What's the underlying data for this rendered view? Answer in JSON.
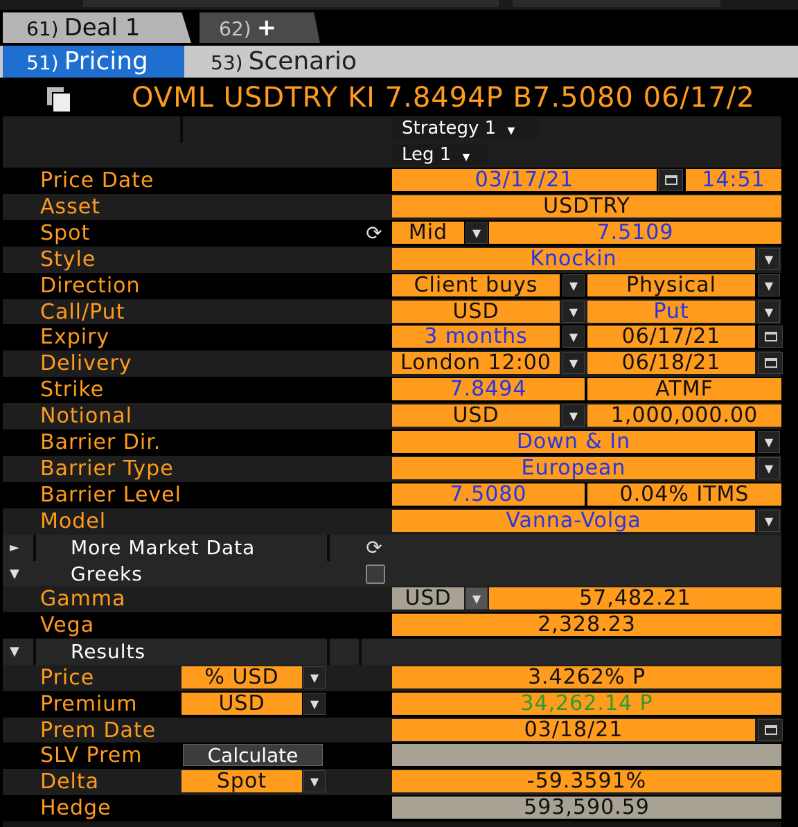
{
  "tabs": {
    "deal": {
      "num": "61)",
      "label": "Deal 1"
    },
    "add": {
      "num": "62)",
      "label": "+"
    }
  },
  "subtabs": {
    "pricing": {
      "num": "51)",
      "label": "Pricing"
    },
    "scenario": {
      "num": "53)",
      "label": "Scenario"
    }
  },
  "title": "OVML USDTRY KI 7.8494P B7.5080 06/17/2",
  "header": {
    "strategy": "Strategy 1",
    "leg": "Leg 1"
  },
  "fields": {
    "price_date": {
      "label": "Price Date",
      "date": "03/17/21",
      "time": "14:51"
    },
    "asset": {
      "label": "Asset",
      "value": "USDTRY"
    },
    "spot": {
      "label": "Spot",
      "side": "Mid",
      "value": "7.5109"
    },
    "style": {
      "label": "Style",
      "value": "Knockin"
    },
    "direction": {
      "label": "Direction",
      "value": "Client buys",
      "settlement": "Physical"
    },
    "callput": {
      "label": "Call/Put",
      "currency": "USD",
      "value": "Put"
    },
    "expiry": {
      "label": "Expiry",
      "tenor": "3 months",
      "date": "06/17/21"
    },
    "delivery": {
      "label": "Delivery",
      "cut": "London 12:00",
      "date": "06/18/21"
    },
    "strike": {
      "label": "Strike",
      "value": "7.8494",
      "type": "ATMF"
    },
    "notional": {
      "label": "Notional",
      "currency": "USD",
      "value": "1,000,000.00"
    },
    "barrier_dir": {
      "label": "Barrier Dir.",
      "value": "Down & In"
    },
    "barrier_type": {
      "label": "Barrier Type",
      "value": "European"
    },
    "barrier_level": {
      "label": "Barrier Level",
      "value": "7.5080",
      "itm": "0.04% ITMS"
    },
    "model": {
      "label": "Model",
      "value": "Vanna-Volga"
    }
  },
  "sections": {
    "market_data": "More Market Data",
    "greeks": "Greeks",
    "results": "Results"
  },
  "greeks": {
    "gamma": {
      "label": "Gamma",
      "currency": "USD",
      "value": "57,482.21"
    },
    "vega": {
      "label": "Vega",
      "value": "2,328.23"
    }
  },
  "results": {
    "price": {
      "label": "Price",
      "unit": "% USD",
      "value": "3.4262% P"
    },
    "premium": {
      "label": "Premium",
      "unit": "USD",
      "value": "34,262.14 P"
    },
    "prem_date": {
      "label": "Prem Date",
      "value": "03/18/21"
    },
    "slv_prem": {
      "label": "SLV Prem",
      "button": "Calculate",
      "value": ""
    },
    "delta": {
      "label": "Delta",
      "unit": "Spot",
      "value": "-59.3591%"
    },
    "hedge": {
      "label": "Hedge",
      "value": "593,590.59"
    }
  },
  "colors": {
    "accent": "#ff9b1d",
    "input_blue": "#2636e6",
    "positive_green": "#2e9b2e",
    "tab_active": "#1f6fd1"
  },
  "icons": {
    "copy": "copy-icon",
    "calendar": "calendar-icon",
    "dropdown": "chevron-down-icon",
    "refresh": "refresh-icon",
    "expand": "triangle-right-icon",
    "collapse": "triangle-down-icon"
  }
}
